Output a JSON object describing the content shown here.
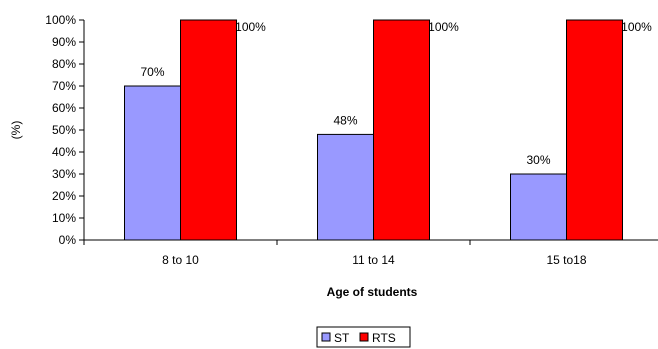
{
  "chart_data": {
    "type": "bar",
    "categories": [
      "8 to 10",
      "11 to 14",
      "15 to18"
    ],
    "series": [
      {
        "name": "ST",
        "values": [
          70,
          48,
          30
        ],
        "labels": [
          "70%",
          "48%",
          "30%"
        ],
        "color": "#9999FF"
      },
      {
        "name": "RTS",
        "values": [
          100,
          100,
          100
        ],
        "labels": [
          "100%",
          "100%",
          "100%"
        ],
        "color": "#FF0000"
      }
    ],
    "title": "",
    "xlabel": "Age of students",
    "ylabel": "(%)",
    "ylim": [
      0,
      100
    ],
    "yticks": [
      0,
      10,
      20,
      30,
      40,
      50,
      60,
      70,
      80,
      90,
      100
    ],
    "ytick_labels": [
      "0%",
      "10%",
      "20%",
      "30%",
      "40%",
      "50%",
      "60%",
      "70%",
      "80%",
      "90%",
      "100%"
    ],
    "grid": false,
    "legend": "bottom-center"
  }
}
